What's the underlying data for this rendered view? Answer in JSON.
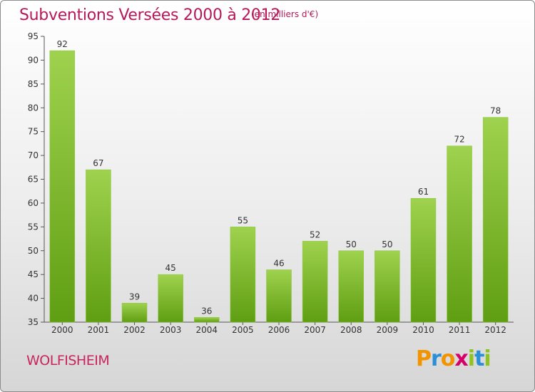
{
  "header": {
    "title": "Subventions Versées 2000 à 2012",
    "subtitle": "(en milliers d'€)"
  },
  "footer": {
    "place": "WOLFISHEIM",
    "brand": {
      "letters": [
        "P",
        "r",
        "o",
        "x",
        "i",
        "t",
        "i"
      ],
      "colors": [
        "#f29400",
        "#2a8fd6",
        "#f29400",
        "#d6006a",
        "#8fc31f",
        "#2a8fd6",
        "#8fc31f"
      ]
    }
  },
  "chart_data": {
    "type": "bar",
    "title": "Subventions Versées 2000 à 2012",
    "subtitle": "(en milliers d'€)",
    "categories": [
      "2000",
      "2001",
      "2002",
      "2003",
      "2004",
      "2005",
      "2006",
      "2007",
      "2008",
      "2009",
      "2010",
      "2011",
      "2012"
    ],
    "values": [
      92,
      67,
      39,
      45,
      36,
      55,
      46,
      52,
      50,
      50,
      61,
      72,
      78
    ],
    "value_labels": [
      "92",
      "67",
      "39",
      "45",
      "36",
      "55",
      "46",
      "52",
      "50",
      "50",
      "61",
      "72",
      "78"
    ],
    "ylim": [
      35,
      95
    ],
    "yticks": [
      35,
      40,
      45,
      50,
      55,
      60,
      65,
      70,
      75,
      80,
      85,
      90,
      95
    ],
    "ytick_labels": [
      "35",
      "40",
      "45",
      "50",
      "55",
      "60",
      "65",
      "70",
      "75",
      "80",
      "85",
      "90",
      "95"
    ],
    "grid": false,
    "bar_color_light": "#9fd24e",
    "bar_color_dark": "#5f9e12",
    "axis_color": "#555555"
  }
}
